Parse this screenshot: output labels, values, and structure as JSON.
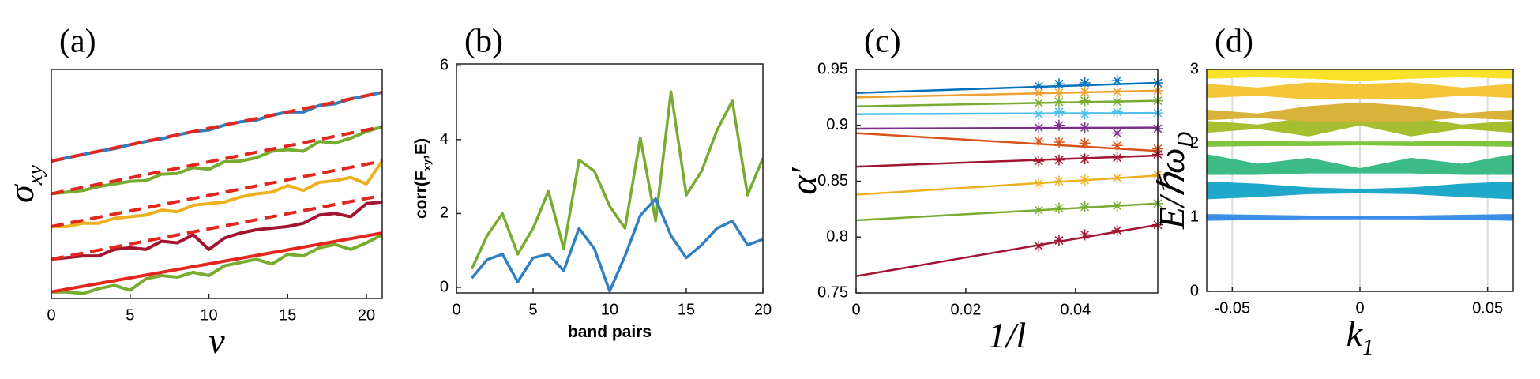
{
  "chart_data": [
    {
      "type": "line",
      "panel_label": "(a)",
      "ylabel": [
        "σ",
        "xy"
      ],
      "xlabel": [
        "ν"
      ],
      "xlim": [
        0,
        21
      ],
      "ylim": [
        -0.2,
        6.8
      ],
      "xticks": [
        0,
        5,
        10,
        15,
        20
      ],
      "yticks": [],
      "series": [
        {
          "color": "#2f7fc1",
          "x": [
            0,
            1,
            2,
            3,
            4,
            5,
            6,
            7,
            8,
            9,
            10,
            11,
            12,
            13,
            14,
            15,
            16,
            17,
            18,
            19,
            20,
            21
          ],
          "values": [
            4.0,
            4.1,
            4.2,
            4.3,
            4.38,
            4.5,
            4.6,
            4.68,
            4.8,
            4.9,
            4.95,
            5.1,
            5.2,
            5.25,
            5.4,
            5.5,
            5.5,
            5.7,
            5.75,
            5.9,
            6.0,
            6.1
          ]
        },
        {
          "color": "#77ac30",
          "x": [
            0,
            1,
            2,
            3,
            4,
            5,
            6,
            7,
            8,
            9,
            10,
            11,
            12,
            13,
            14,
            15,
            16,
            17,
            18,
            19,
            20,
            21
          ],
          "values": [
            3.0,
            3.05,
            3.1,
            3.22,
            3.3,
            3.38,
            3.4,
            3.6,
            3.62,
            3.8,
            3.75,
            3.98,
            4.0,
            4.1,
            4.3,
            4.35,
            4.3,
            4.6,
            4.55,
            4.7,
            4.9,
            5.05
          ]
        },
        {
          "color": "#edb120",
          "x": [
            0,
            1,
            2,
            3,
            4,
            5,
            6,
            7,
            8,
            9,
            10,
            11,
            12,
            13,
            14,
            15,
            16,
            17,
            18,
            19,
            20,
            21
          ],
          "values": [
            2.0,
            2.0,
            2.1,
            2.1,
            2.25,
            2.3,
            2.35,
            2.5,
            2.45,
            2.65,
            2.7,
            2.75,
            2.9,
            3.0,
            3.05,
            3.25,
            3.1,
            3.35,
            3.4,
            3.5,
            3.3,
            4.0
          ]
        },
        {
          "color": "#a2142f",
          "x": [
            0,
            1,
            2,
            3,
            4,
            5,
            6,
            7,
            8,
            9,
            10,
            11,
            12,
            13,
            14,
            15,
            16,
            17,
            18,
            19,
            20,
            21
          ],
          "values": [
            1.0,
            1.05,
            1.1,
            1.1,
            1.3,
            1.35,
            1.3,
            1.55,
            1.5,
            1.75,
            1.3,
            1.65,
            1.8,
            1.9,
            1.95,
            2.0,
            2.1,
            2.35,
            2.4,
            2.3,
            2.7,
            2.75
          ]
        },
        {
          "color": "#77ac30",
          "x": [
            0,
            1,
            2,
            3,
            4,
            5,
            6,
            7,
            8,
            9,
            10,
            11,
            12,
            13,
            14,
            15,
            16,
            17,
            18,
            19,
            20,
            21
          ],
          "values": [
            0,
            0.0,
            -0.05,
            0.1,
            0.2,
            0.05,
            0.4,
            0.5,
            0.45,
            0.6,
            0.5,
            0.8,
            0.9,
            1.0,
            0.85,
            1.15,
            1.1,
            1.35,
            1.45,
            1.3,
            1.5,
            1.75
          ]
        },
        {
          "color": "#e3261e",
          "dash": true,
          "x": [
            0,
            21
          ],
          "values": [
            4,
            6.1
          ]
        },
        {
          "color": "#e3261e",
          "dash": true,
          "x": [
            0,
            21
          ],
          "values": [
            3,
            5.05
          ]
        },
        {
          "color": "#e3261e",
          "dash": true,
          "x": [
            0,
            21
          ],
          "values": [
            2,
            4.0
          ]
        },
        {
          "color": "#e3261e",
          "dash": true,
          "x": [
            0,
            21
          ],
          "values": [
            1,
            2.95
          ]
        },
        {
          "color": "#e3261e",
          "x": [
            0,
            21
          ],
          "values": [
            0,
            1.8
          ]
        }
      ]
    },
    {
      "type": "line",
      "panel_label": "(b)",
      "ylabel": [
        "corr(F",
        "xy",
        ",E)"
      ],
      "xlabel": [
        "band pairs"
      ],
      "xlim": [
        0,
        20
      ],
      "ylim": [
        -0.15,
        6.05
      ],
      "xticks": [
        0,
        5,
        10,
        15,
        20
      ],
      "yticks": [
        0,
        2,
        4,
        6
      ],
      "series": [
        {
          "color": "#77ac30",
          "x": [
            1,
            2,
            3,
            4,
            5,
            6,
            7,
            8,
            9,
            10,
            11,
            12,
            13,
            14,
            15,
            16,
            17,
            18,
            19,
            20
          ],
          "values": [
            0.5,
            1.4,
            2.0,
            0.9,
            1.6,
            2.6,
            1.05,
            3.45,
            3.15,
            2.2,
            1.6,
            4.05,
            1.8,
            5.3,
            2.5,
            3.15,
            4.25,
            5.05,
            2.5,
            3.5
          ]
        },
        {
          "color": "#2f7fc1",
          "x": [
            1,
            2,
            3,
            4,
            5,
            6,
            7,
            8,
            9,
            10,
            11,
            12,
            13,
            14,
            15,
            16,
            17,
            18,
            19,
            20
          ],
          "values": [
            0.25,
            0.75,
            0.9,
            0.15,
            0.8,
            0.9,
            0.45,
            1.6,
            1.05,
            -0.1,
            0.85,
            1.95,
            2.4,
            1.4,
            0.8,
            1.15,
            1.6,
            1.8,
            1.15,
            1.3
          ]
        }
      ]
    },
    {
      "type": "line",
      "panel_label": "(c)",
      "ylabel": [
        "α′"
      ],
      "xlabel": [
        "1/l"
      ],
      "xlim": [
        0,
        0.055
      ],
      "ylim": [
        0.75,
        0.95
      ],
      "xticks": [
        0,
        0.02,
        0.04
      ],
      "yticks": [
        0.75,
        0.8,
        0.85,
        0.9,
        0.95
      ],
      "marker_x": [
        0.0333,
        0.037,
        0.0417,
        0.0476,
        0.055
      ],
      "series": [
        {
          "color": "#0072bd",
          "x": [
            0,
            0.055
          ],
          "values": [
            0.929,
            0.938
          ],
          "points": [
            0.935,
            0.937,
            0.938,
            0.94,
            0.938
          ]
        },
        {
          "color": "#f0a030",
          "x": [
            0,
            0.055
          ],
          "values": [
            0.925,
            0.931
          ],
          "points": [
            0.929,
            0.929,
            0.93,
            0.93,
            0.931
          ]
        },
        {
          "color": "#77ac30",
          "x": [
            0,
            0.055
          ],
          "values": [
            0.917,
            0.922
          ],
          "points": [
            0.92,
            0.921,
            0.922,
            0.921,
            0.922
          ]
        },
        {
          "color": "#4dbeee",
          "x": [
            0,
            0.055
          ],
          "values": [
            0.91,
            0.911
          ],
          "points": [
            0.91,
            0.912,
            0.91,
            0.912,
            0.911
          ]
        },
        {
          "color": "#7e2f8e",
          "x": [
            0,
            0.055
          ],
          "values": [
            0.897,
            0.898
          ],
          "points": [
            0.898,
            0.9,
            0.898,
            0.893,
            0.897
          ]
        },
        {
          "color": "#d95319",
          "x": [
            0,
            0.055
          ],
          "values": [
            0.893,
            0.877
          ],
          "points": [
            0.886,
            0.885,
            0.884,
            0.882,
            0.879
          ]
        },
        {
          "color": "#a2142f",
          "x": [
            0,
            0.055
          ],
          "values": [
            0.863,
            0.873
          ],
          "points": [
            0.868,
            0.869,
            0.87,
            0.871,
            0.874
          ]
        },
        {
          "color": "#edb120",
          "x": [
            0,
            0.055
          ],
          "values": [
            0.838,
            0.855
          ],
          "points": [
            0.848,
            0.85,
            0.851,
            0.853,
            0.856
          ]
        },
        {
          "color": "#77ac30",
          "x": [
            0,
            0.055
          ],
          "values": [
            0.815,
            0.83
          ],
          "points": [
            0.824,
            0.826,
            0.827,
            0.828,
            0.83
          ]
        },
        {
          "color": "#a2142f",
          "x": [
            0,
            0.055
          ],
          "values": [
            0.765,
            0.811
          ],
          "points": [
            0.792,
            0.797,
            0.802,
            0.806,
            0.811
          ]
        }
      ]
    },
    {
      "type": "band",
      "panel_label": "(d)",
      "ylabel": [
        "E/ℏω",
        "D"
      ],
      "xlabel": [
        "k",
        "1"
      ],
      "xlim": [
        -0.06,
        0.06
      ],
      "ylim": [
        0,
        3
      ],
      "xticks": [
        -0.05,
        0,
        0.05
      ],
      "yticks": [
        0,
        1,
        2,
        3
      ],
      "grid": "x",
      "x": [
        -0.06,
        -0.04,
        -0.02,
        0,
        0.02,
        0.04,
        0.06
      ],
      "series": [
        {
          "color": "#3a8ee6",
          "lower": [
            0.96,
            0.97,
            0.98,
            0.98,
            0.98,
            0.97,
            0.96
          ],
          "upper": [
            1.04,
            1.03,
            1.02,
            1.02,
            1.02,
            1.03,
            1.04
          ]
        },
        {
          "color": "#1fa8c9",
          "lower": [
            1.25,
            1.28,
            1.32,
            1.33,
            1.32,
            1.28,
            1.25
          ],
          "upper": [
            1.48,
            1.45,
            1.4,
            1.38,
            1.4,
            1.45,
            1.48
          ]
        },
        {
          "color": "#3dbb85",
          "lower": [
            1.58,
            1.58,
            1.6,
            1.6,
            1.6,
            1.58,
            1.58
          ],
          "upper": [
            1.85,
            1.72,
            1.8,
            1.66,
            1.8,
            1.72,
            1.85
          ]
        },
        {
          "color": "#80c440",
          "lower": [
            1.96,
            1.97,
            1.97,
            1.98,
            1.97,
            1.97,
            1.96
          ],
          "upper": [
            2.03,
            2.03,
            2.02,
            2.02,
            2.02,
            2.03,
            2.03
          ]
        },
        {
          "color": "#a6bf30",
          "lower": [
            2.15,
            2.2,
            2.1,
            2.25,
            2.1,
            2.2,
            2.15
          ],
          "upper": [
            2.3,
            2.25,
            2.35,
            2.3,
            2.35,
            2.25,
            2.3
          ]
        },
        {
          "color": "#d9b23a",
          "lower": [
            2.32,
            2.35,
            2.3,
            2.3,
            2.3,
            2.35,
            2.32
          ],
          "upper": [
            2.45,
            2.4,
            2.5,
            2.55,
            2.5,
            2.4,
            2.45
          ]
        },
        {
          "color": "#f5c63a",
          "lower": [
            2.62,
            2.65,
            2.6,
            2.6,
            2.6,
            2.65,
            2.62
          ],
          "upper": [
            2.8,
            2.75,
            2.82,
            2.8,
            2.82,
            2.75,
            2.8
          ]
        },
        {
          "color": "#f8e32a",
          "lower": [
            2.88,
            2.9,
            2.88,
            2.85,
            2.88,
            2.9,
            2.88
          ],
          "upper": [
            3.0,
            3.0,
            3.0,
            3.0,
            3.0,
            3.0,
            3.0
          ]
        }
      ]
    }
  ]
}
